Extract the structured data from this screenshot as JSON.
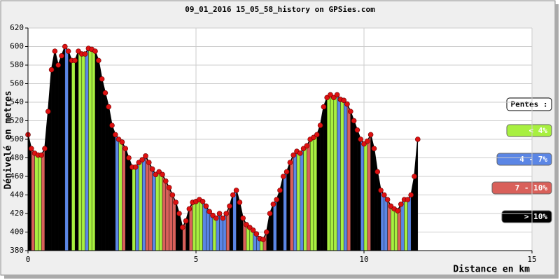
{
  "chart_data": {
    "type": "area",
    "title": "09_01_2016 15_05_58_history on GPSies.com",
    "x_label": "Distance en km",
    "y_label": "Dénivelé en metres",
    "xlim": [
      0,
      15
    ],
    "xticks": [
      0,
      5,
      10,
      15
    ],
    "ylim": [
      380,
      620
    ],
    "yticks": [
      380,
      400,
      420,
      440,
      460,
      480,
      500,
      520,
      540,
      560,
      580,
      600,
      620
    ],
    "grid": true,
    "legend": {
      "title": "Pentes :",
      "position": "right",
      "entries": [
        {
          "name": "< 4%",
          "color": "#a8f040"
        },
        {
          "name": "4 - 7%",
          "color": "#5b86e5"
        },
        {
          "name": "7 - 10%",
          "color": "#d9605a"
        },
        {
          "name": "> 10%",
          "color": "#000000"
        }
      ]
    },
    "line_color": "#000000",
    "marker_color": "#dd1111",
    "x": [
      0,
      0.1,
      0.2,
      0.3,
      0.4,
      0.5,
      0.6,
      0.7,
      0.8,
      0.9,
      1,
      1.1,
      1.2,
      1.3,
      1.4,
      1.5,
      1.6,
      1.7,
      1.8,
      1.9,
      2,
      2.1,
      2.2,
      2.3,
      2.4,
      2.5,
      2.6,
      2.7,
      2.8,
      2.9,
      3,
      3.1,
      3.2,
      3.3,
      3.4,
      3.5,
      3.6,
      3.7,
      3.8,
      3.9,
      4,
      4.1,
      4.2,
      4.3,
      4.4,
      4.5,
      4.6,
      4.7,
      4.8,
      4.9,
      5,
      5.1,
      5.2,
      5.3,
      5.4,
      5.5,
      5.6,
      5.7,
      5.8,
      5.9,
      6,
      6.1,
      6.2,
      6.3,
      6.4,
      6.5,
      6.6,
      6.7,
      6.8,
      6.9,
      7,
      7.1,
      7.2,
      7.3,
      7.4,
      7.5,
      7.6,
      7.7,
      7.8,
      7.9,
      8,
      8.1,
      8.2,
      8.3,
      8.4,
      8.5,
      8.6,
      8.7,
      8.8,
      8.9,
      9,
      9.1,
      9.2,
      9.3,
      9.4,
      9.5,
      9.6,
      9.7,
      9.8,
      9.9,
      10,
      10.1,
      10.2,
      10.3,
      10.4,
      10.5,
      10.6,
      10.7,
      10.8,
      10.9,
      11,
      11.1,
      11.2,
      11.3,
      11.4,
      11.5,
      11.6
    ],
    "values": [
      505,
      490,
      485,
      483,
      483,
      490,
      530,
      575,
      595,
      580,
      590,
      600,
      595,
      585,
      585,
      595,
      592,
      592,
      598,
      597,
      595,
      585,
      565,
      550,
      535,
      515,
      505,
      500,
      497,
      490,
      480,
      470,
      470,
      475,
      478,
      482,
      475,
      468,
      462,
      465,
      462,
      455,
      448,
      440,
      432,
      420,
      405,
      412,
      425,
      432,
      433,
      435,
      433,
      428,
      422,
      418,
      415,
      420,
      415,
      420,
      428,
      440,
      445,
      432,
      415,
      408,
      405,
      402,
      398,
      393,
      392,
      400,
      420,
      430,
      435,
      445,
      460,
      465,
      475,
      483,
      487,
      485,
      490,
      493,
      500,
      502,
      505,
      515,
      535,
      545,
      548,
      545,
      548,
      543,
      542,
      538,
      530,
      520,
      510,
      500,
      495,
      498,
      505,
      490,
      465,
      445,
      440,
      435,
      428,
      425,
      423,
      430,
      435,
      435,
      440,
      460,
      500
    ],
    "segment_colors": [
      "#000000",
      "#d9605a",
      "#a8f040",
      "#a8f040",
      "#d9605a",
      "#000000",
      "#000000",
      "#000000",
      "#000000",
      "#000000",
      "#000000",
      "#5b86e5",
      "#000000",
      "#a8f040",
      "#000000",
      "#a8f040",
      "#a8f040",
      "#5b86e5",
      "#a8f040",
      "#a8f040",
      "#000000",
      "#000000",
      "#000000",
      "#000000",
      "#000000",
      "#000000",
      "#5b86e5",
      "#a8f040",
      "#d9605a",
      "#000000",
      "#000000",
      "#a8f040",
      "#5b86e5",
      "#a8f040",
      "#5b86e5",
      "#d9605a",
      "#d9605a",
      "#5b86e5",
      "#a8f040",
      "#a8f040",
      "#d9605a",
      "#d9605a",
      "#d9605a",
      "#d9605a",
      "#000000",
      "#000000",
      "#d9605a",
      "#000000",
      "#d9605a",
      "#a8f040",
      "#a8f040",
      "#a8f040",
      "#5b86e5",
      "#5b86e5",
      "#5b86e5",
      "#a8f040",
      "#5b86e5",
      "#5b86e5",
      "#5b86e5",
      "#d9605a",
      "#000000",
      "#5b86e5",
      "#000000",
      "#000000",
      "#d9605a",
      "#a8f040",
      "#a8f040",
      "#5b86e5",
      "#5b86e5",
      "#a8f040",
      "#d9605a",
      "#000000",
      "#000000",
      "#5b86e5",
      "#000000",
      "#000000",
      "#5b86e5",
      "#000000",
      "#d9605a",
      "#5b86e5",
      "#a8f040",
      "#5b86e5",
      "#a8f040",
      "#d9605a",
      "#a8f040",
      "#a8f040",
      "#000000",
      "#000000",
      "#000000",
      "#a8f040",
      "#a8f040",
      "#a8f040",
      "#5b86e5",
      "#a8f040",
      "#5b86e5",
      "#d9605a",
      "#000000",
      "#000000",
      "#000000",
      "#5b86e5",
      "#a8f040",
      "#d9605a",
      "#000000",
      "#000000",
      "#000000",
      "#5b86e5",
      "#5b86e5",
      "#d9605a",
      "#a8f040",
      "#a8f040",
      "#d9605a",
      "#5b86e5",
      "#a8f040",
      "#5b86e5",
      "#000000",
      "#000000"
    ]
  }
}
